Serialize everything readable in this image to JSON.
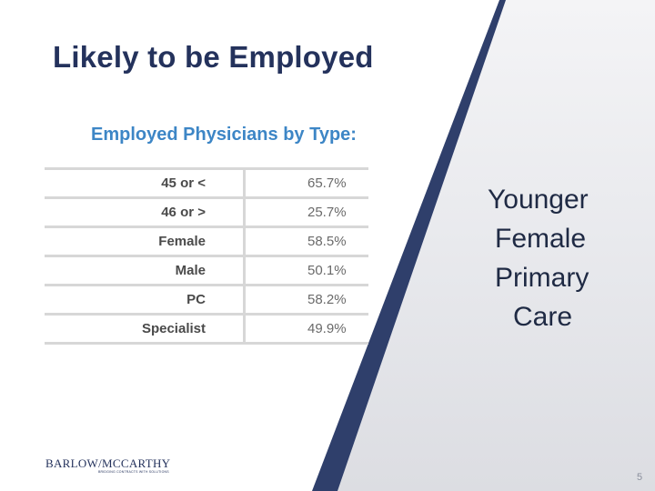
{
  "slide": {
    "title": "Likely to be Employed",
    "table_heading": "Employed Physicians by Type:",
    "table_rows": [
      {
        "label": "45 or <",
        "value": "65.7%"
      },
      {
        "label": "46 or >",
        "value": "25.7%"
      },
      {
        "label": "Female",
        "value": "58.5%"
      },
      {
        "label": "Male",
        "value": "50.1%"
      },
      {
        "label": "PC",
        "value": "58.2%"
      },
      {
        "label": "Specialist",
        "value": "49.9%"
      }
    ],
    "callout_lines": [
      "Younger",
      "Female",
      "Primary",
      "Care"
    ],
    "logo": {
      "name": "BARLOW/MCCARTHY",
      "tagline": "BRIDGING CONTRACTS WITH SOLUTIONS"
    },
    "page_number": "5"
  },
  "colors": {
    "navy": "#2f3f6b",
    "title": "#24325c",
    "table_heading": "#3d86c6",
    "rule": "#d7d7d7"
  }
}
